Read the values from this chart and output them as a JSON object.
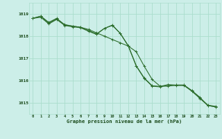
{
  "title": "Graphe pression niveau de la mer (hPa)",
  "background_color": "#cceee8",
  "grid_color": "#aaddcc",
  "line_color": "#2d6e2d",
  "ylim": [
    1014.5,
    1019.5
  ],
  "yticks": [
    1015,
    1016,
    1017,
    1018,
    1019
  ],
  "line1": [
    1018.8,
    1018.9,
    1018.62,
    1018.8,
    1018.5,
    1018.45,
    1018.4,
    1018.3,
    1018.15,
    1018.0,
    1017.85,
    1017.7,
    1017.55,
    1017.3,
    1016.65,
    1016.05,
    1015.75,
    1015.75,
    1015.8,
    1015.8,
    1015.55,
    1015.25,
    1014.88,
    1014.82
  ],
  "line2": [
    1018.8,
    1018.9,
    1018.58,
    1018.78,
    1018.52,
    1018.45,
    1018.4,
    1018.25,
    1018.1,
    1018.35,
    1018.48,
    1018.12,
    1017.55,
    1016.65,
    1016.1,
    1015.75,
    1015.72,
    1015.8,
    1015.78,
    1015.78,
    1015.52,
    1015.2,
    1014.88,
    1014.82
  ],
  "line3": [
    1018.8,
    1018.85,
    1018.55,
    1018.75,
    1018.48,
    1018.42,
    1018.38,
    1018.22,
    1018.08,
    1018.35,
    1018.5,
    1018.12,
    1017.57,
    1016.67,
    1016.12,
    1015.77,
    1015.74,
    1015.82,
    1015.8,
    1015.8,
    1015.54,
    1015.22,
    1014.9,
    1014.84
  ]
}
